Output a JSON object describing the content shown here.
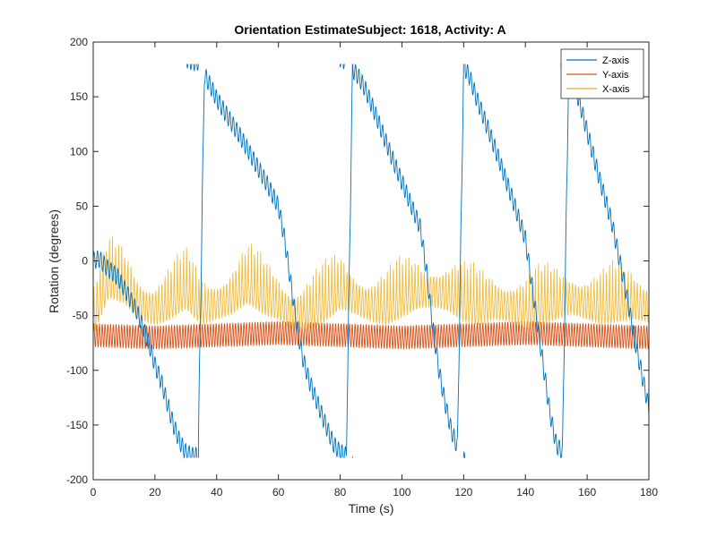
{
  "chart_data": {
    "type": "line",
    "title": "Orientation EstimateSubject: 1618, Activity: A",
    "xlabel": "Time (s)",
    "ylabel": "Rotation (degrees)",
    "xlim": [
      0,
      180
    ],
    "ylim": [
      -200,
      200
    ],
    "x_ticks": [
      0,
      20,
      40,
      60,
      80,
      100,
      120,
      140,
      160,
      180
    ],
    "y_ticks": [
      -200,
      -150,
      -100,
      -50,
      0,
      50,
      100,
      150,
      200
    ],
    "grid": false,
    "legend_position": "top-right",
    "series": [
      {
        "name": "Z-axis",
        "color": "#0072BD",
        "x": [
          0,
          2,
          4,
          6,
          8,
          10,
          12,
          14,
          16,
          18,
          20,
          22,
          24,
          26,
          28,
          30,
          32,
          34,
          36,
          38,
          40,
          44,
          48,
          52,
          56,
          60,
          62,
          64,
          66,
          68,
          70,
          72,
          74,
          76,
          78,
          80,
          82,
          84,
          86,
          88,
          92,
          96,
          100,
          104,
          106,
          108,
          110,
          112,
          114,
          116,
          118,
          120,
          122,
          124,
          128,
          132,
          136,
          140,
          142,
          144,
          146,
          148,
          150,
          152,
          154,
          156,
          158,
          160,
          164,
          168,
          172,
          176,
          180
        ],
        "y": [
          0,
          2,
          -5,
          -10,
          -15,
          -25,
          -35,
          -45,
          -60,
          -75,
          -95,
          -110,
          -130,
          -150,
          -165,
          -175,
          -178,
          -178,
          170,
          160,
          148,
          130,
          112,
          92,
          72,
          50,
          20,
          -20,
          -60,
          -90,
          -110,
          -125,
          -140,
          -155,
          -168,
          -175,
          -178,
          175,
          168,
          158,
          130,
          100,
          72,
          44,
          30,
          -10,
          -60,
          -100,
          -130,
          -155,
          -170,
          178,
          168,
          150,
          120,
          88,
          55,
          20,
          -20,
          -60,
          -100,
          -140,
          -168,
          -175,
          172,
          160,
          140,
          118,
          75,
          35,
          -20,
          -80,
          -135
        ]
      },
      {
        "name": "Y-axis",
        "color": "#D95319",
        "x": [
          0,
          20,
          40,
          60,
          80,
          100,
          120,
          140,
          160,
          180
        ],
        "y": [
          -68,
          -70,
          -68,
          -66,
          -68,
          -70,
          -68,
          -66,
          -68,
          -70
        ]
      },
      {
        "name": "X-axis",
        "color": "#EDB120",
        "x": [
          0,
          5,
          10,
          15,
          20,
          25,
          30,
          35,
          40,
          45,
          50,
          55,
          60,
          65,
          70,
          75,
          80,
          85,
          90,
          95,
          100,
          105,
          110,
          115,
          120,
          125,
          130,
          135,
          140,
          145,
          150,
          155,
          160,
          165,
          170,
          175,
          180
        ],
        "y": [
          -55,
          -20,
          -25,
          -40,
          -45,
          -40,
          -30,
          -45,
          -40,
          -35,
          -25,
          -35,
          -40,
          -50,
          -48,
          -42,
          -30,
          -35,
          -42,
          -45,
          -38,
          -30,
          -28,
          -32,
          -42,
          -45,
          -40,
          -42,
          -48,
          -45,
          -40,
          -35,
          -40,
          -45,
          -42,
          -40,
          -42
        ]
      }
    ]
  }
}
